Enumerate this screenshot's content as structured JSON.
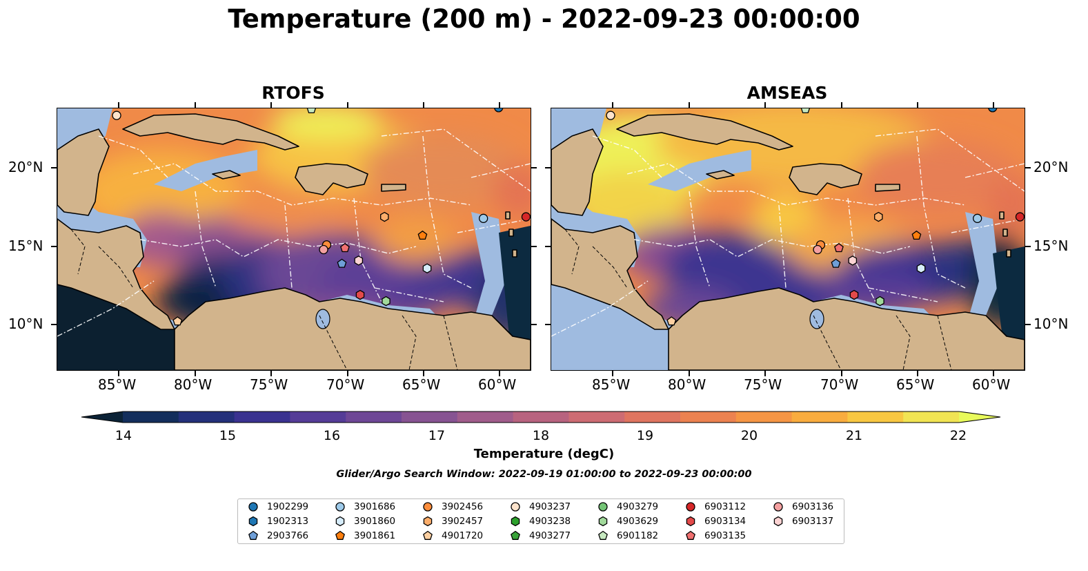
{
  "title": "Temperature (200 m) - 2022-09-23 00:00:00",
  "panels": [
    {
      "name": "RTOFS"
    },
    {
      "name": "AMSEAS"
    }
  ],
  "axes": {
    "lon_ticks": [
      "85°W",
      "80°W",
      "75°W",
      "70°W",
      "65°W",
      "60°W"
    ],
    "lat_ticks": [
      "20°N",
      "15°N",
      "10°N"
    ]
  },
  "colorbar": {
    "label": "Temperature (degC)",
    "ticks": [
      "14",
      "15",
      "16",
      "17",
      "18",
      "19",
      "20",
      "21",
      "22"
    ],
    "range": [
      14,
      22
    ],
    "extend": "both",
    "colormap": [
      "#0b2236",
      "#132e5c",
      "#24307a",
      "#3a3290",
      "#553c97",
      "#6e4796",
      "#875392",
      "#a05c8b",
      "#b8637f",
      "#cd6c73",
      "#df7560",
      "#ec8250",
      "#f59544",
      "#f9ac3e",
      "#f8c742",
      "#f1e453",
      "#e8fa5b"
    ]
  },
  "search_window": "Glider/Argo Search Window: 2022-09-19 01:00:00 to 2022-09-23 00:00:00",
  "legend": [
    {
      "id": "1902299",
      "marker": "circle",
      "color": "#1f77b4"
    },
    {
      "id": "1902313",
      "marker": "hexagon",
      "color": "#1f77b4"
    },
    {
      "id": "2903766",
      "marker": "pentagon",
      "color": "#6f9fd8"
    },
    {
      "id": "3901686",
      "marker": "circle",
      "color": "#9ecae9"
    },
    {
      "id": "3901860",
      "marker": "hexagon",
      "color": "#d6ecfa"
    },
    {
      "id": "3901861",
      "marker": "pentagon",
      "color": "#ff7f0e"
    },
    {
      "id": "3902456",
      "marker": "circle",
      "color": "#fd8d3c"
    },
    {
      "id": "3902457",
      "marker": "hexagon",
      "color": "#fdae6b"
    },
    {
      "id": "4901720",
      "marker": "pentagon",
      "color": "#fdd0a2"
    },
    {
      "id": "4903237",
      "marker": "circle",
      "color": "#fde3cc"
    },
    {
      "id": "4903238",
      "marker": "hexagon",
      "color": "#2ca02c"
    },
    {
      "id": "4903277",
      "marker": "pentagon",
      "color": "#3aa33a"
    },
    {
      "id": "4903279",
      "marker": "circle",
      "color": "#74c476"
    },
    {
      "id": "4903629",
      "marker": "hexagon",
      "color": "#a1d99b"
    },
    {
      "id": "6901182",
      "marker": "pentagon",
      "color": "#c7e9c0"
    },
    {
      "id": "6903112",
      "marker": "circle",
      "color": "#d62728"
    },
    {
      "id": "6903134",
      "marker": "hexagon",
      "color": "#e34a4a"
    },
    {
      "id": "6903135",
      "marker": "pentagon",
      "color": "#f07070"
    },
    {
      "id": "6903136",
      "marker": "circle",
      "color": "#f4a0a0"
    },
    {
      "id": "6903137",
      "marker": "hexagon",
      "color": "#fcd3d3"
    }
  ],
  "map_colors": {
    "land": "#d2b48c",
    "shelf": "#9fbbe0",
    "coast": "#000000"
  }
}
